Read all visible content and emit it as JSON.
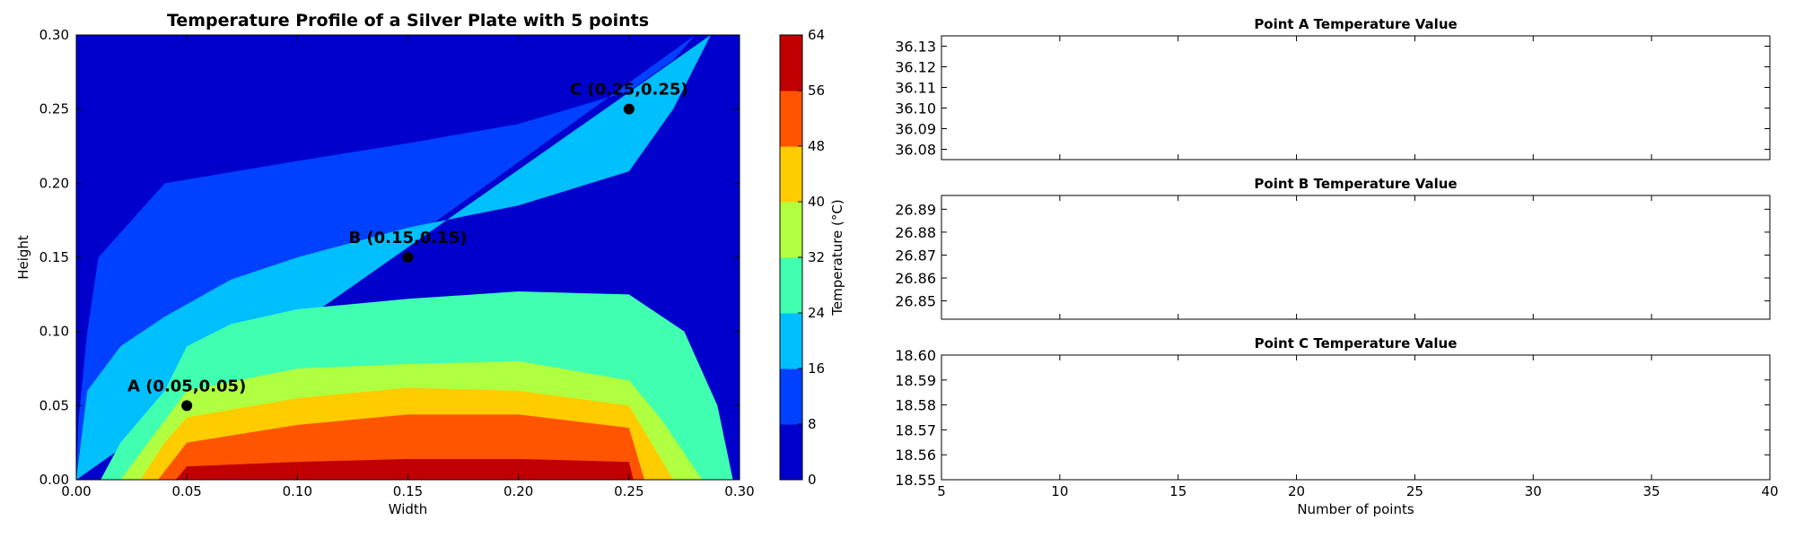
{
  "chart_data": [
    {
      "type": "contour",
      "title": "Temperature Profile of a Silver Plate with 5 points",
      "xlabel": "Width",
      "ylabel": "Height",
      "xlim": [
        0.0,
        0.3
      ],
      "ylim": [
        0.0,
        0.3
      ],
      "x_ticks": [
        "0.00",
        "0.05",
        "0.10",
        "0.15",
        "0.20",
        "0.25",
        "0.30"
      ],
      "y_ticks": [
        "0.00",
        "0.05",
        "0.10",
        "0.15",
        "0.20",
        "0.25",
        "0.30"
      ],
      "colorbar": {
        "label": "Temperature (°C)",
        "ticks": [
          "0",
          "8",
          "16",
          "24",
          "32",
          "40",
          "48",
          "56",
          "64"
        ],
        "levels": [
          0,
          8,
          16,
          24,
          32,
          40,
          48,
          56,
          64
        ],
        "colors": [
          "#0000cc",
          "#0040ff",
          "#00bfff",
          "#40ffb0",
          "#b0ff40",
          "#ffcc00",
          "#ff5500",
          "#c00000"
        ]
      },
      "contour_levels": [
        {
          "level": 8,
          "points": [
            [
              0.0,
              0.0
            ],
            [
              0.0,
              0.284
            ],
            [
              0.05,
              0.281
            ],
            [
              0.1,
              0.281
            ],
            [
              0.15,
              0.282
            ],
            [
              0.2,
              0.284
            ],
            [
              0.248,
              0.288
            ],
            [
              0.252,
              0.3
            ]
          ]
        },
        {
          "level": 16,
          "points": [
            [
              0.0,
              0.0
            ],
            [
              0.001,
              0.04
            ],
            [
              0.005,
              0.1
            ],
            [
              0.01,
              0.15
            ],
            [
              0.04,
              0.2
            ],
            [
              0.06,
              0.205
            ],
            [
              0.1,
              0.215
            ],
            [
              0.15,
              0.227
            ],
            [
              0.2,
              0.24
            ],
            [
              0.25,
              0.262
            ],
            [
              0.27,
              0.283
            ],
            [
              0.28,
              0.3
            ]
          ]
        },
        {
          "level": 24,
          "points": [
            [
              0.0,
              0.0
            ],
            [
              0.005,
              0.06
            ],
            [
              0.02,
              0.09
            ],
            [
              0.04,
              0.11
            ],
            [
              0.07,
              0.135
            ],
            [
              0.1,
              0.15
            ],
            [
              0.15,
              0.17
            ],
            [
              0.2,
              0.185
            ],
            [
              0.25,
              0.208
            ],
            [
              0.27,
              0.25
            ],
            [
              0.287,
              0.3
            ]
          ]
        },
        {
          "level": 32,
          "points": [
            [
              0.011,
              0.0
            ],
            [
              0.02,
              0.025
            ],
            [
              0.04,
              0.06
            ],
            [
              0.05,
              0.09
            ],
            [
              0.07,
              0.105
            ],
            [
              0.1,
              0.115
            ],
            [
              0.15,
              0.122
            ],
            [
              0.2,
              0.127
            ],
            [
              0.25,
              0.125
            ],
            [
              0.275,
              0.1
            ],
            [
              0.29,
              0.05
            ],
            [
              0.297,
              0.0
            ]
          ]
        },
        {
          "level": 40,
          "points": [
            [
              0.02,
              0.0
            ],
            [
              0.035,
              0.03
            ],
            [
              0.05,
              0.06
            ],
            [
              0.1,
              0.075
            ],
            [
              0.15,
              0.078
            ],
            [
              0.2,
              0.08
            ],
            [
              0.25,
              0.067
            ],
            [
              0.265,
              0.04
            ],
            [
              0.283,
              0.0
            ]
          ]
        },
        {
          "level": 48,
          "points": [
            [
              0.029,
              0.0
            ],
            [
              0.04,
              0.025
            ],
            [
              0.05,
              0.042
            ],
            [
              0.1,
              0.055
            ],
            [
              0.15,
              0.062
            ],
            [
              0.2,
              0.06
            ],
            [
              0.25,
              0.05
            ],
            [
              0.26,
              0.025
            ],
            [
              0.27,
              0.0
            ]
          ]
        },
        {
          "level": 56,
          "points": [
            [
              0.037,
              0.0
            ],
            [
              0.05,
              0.025
            ],
            [
              0.1,
              0.037
            ],
            [
              0.15,
              0.044
            ],
            [
              0.2,
              0.044
            ],
            [
              0.25,
              0.035
            ],
            [
              0.257,
              0.0
            ]
          ]
        },
        {
          "level": 64,
          "points": [
            [
              0.045,
              0.0
            ],
            [
              0.05,
              0.009
            ],
            [
              0.1,
              0.012
            ],
            [
              0.15,
              0.014
            ],
            [
              0.2,
              0.014
            ],
            [
              0.25,
              0.012
            ],
            [
              0.252,
              0.0
            ]
          ]
        }
      ],
      "points": [
        {
          "label": "A (0.05,0.05)",
          "x": 0.05,
          "y": 0.05
        },
        {
          "label": "B (0.15,0.15)",
          "x": 0.15,
          "y": 0.15
        },
        {
          "label": "C (0.25,0.25)",
          "x": 0.25,
          "y": 0.25
        }
      ]
    },
    {
      "type": "line",
      "title": "Point A Temperature Value",
      "ylim": [
        36.075,
        36.135
      ],
      "y_ticks": [
        "36.08",
        "36.09",
        "36.10",
        "36.11",
        "36.12",
        "36.13"
      ],
      "xlim": [
        5,
        40
      ],
      "series": []
    },
    {
      "type": "line",
      "title": "Point B Temperature Value",
      "ylim": [
        26.842,
        26.896
      ],
      "y_ticks": [
        "26.85",
        "26.86",
        "26.87",
        "26.88",
        "26.89"
      ],
      "xlim": [
        5,
        40
      ],
      "series": []
    },
    {
      "type": "line",
      "title": "Point C Temperature Value",
      "xlabel": "Number of points",
      "ylim": [
        18.55,
        18.6
      ],
      "y_ticks": [
        "18.55",
        "18.56",
        "18.57",
        "18.58",
        "18.59",
        "18.60"
      ],
      "xlim": [
        5,
        40
      ],
      "x_ticks": [
        "5",
        "10",
        "15",
        "20",
        "25",
        "30",
        "35",
        "40"
      ],
      "series": []
    }
  ]
}
